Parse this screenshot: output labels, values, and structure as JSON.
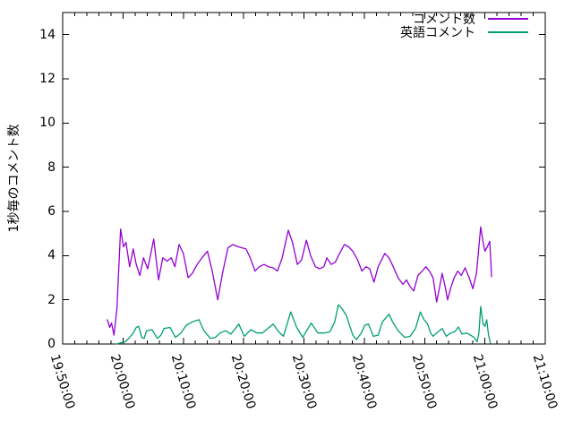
{
  "chart_data": {
    "type": "line",
    "title": "",
    "xlabel": "",
    "ylabel": "1秒毎のコメント数",
    "x_axis": {
      "kind": "time",
      "start_label": "19:50:00",
      "end_label": "21:10:00",
      "range_minutes": [
        0,
        80
      ],
      "major_tick_interval_minutes": 10,
      "minor_tick_interval_minutes": 2,
      "tick_labels": [
        "19:50:00",
        "20:00:00",
        "20:10:00",
        "20:20:00",
        "20:30:00",
        "20:40:00",
        "20:50:00",
        "21:00:00",
        "21:10:00"
      ],
      "tick_label_rotation_deg": 73
    },
    "y_axis": {
      "ylim": [
        0,
        15
      ],
      "major_tick_interval": 2,
      "tick_labels": [
        "0",
        "2",
        "4",
        "6",
        "8",
        "10",
        "12",
        "14"
      ]
    },
    "grid": false,
    "legend_position": "top-right-inside",
    "series": [
      {
        "name": "コメント数",
        "color": "#9400d3",
        "x_unit": "minutes_after_19:50:00",
        "points": [
          [
            7.4,
            1.1
          ],
          [
            7.8,
            0.75
          ],
          [
            8.1,
            0.95
          ],
          [
            8.5,
            0.4
          ],
          [
            9.0,
            1.6
          ],
          [
            9.6,
            5.2
          ],
          [
            10.1,
            4.4
          ],
          [
            10.5,
            4.6
          ],
          [
            11.1,
            3.5
          ],
          [
            11.7,
            4.3
          ],
          [
            12.2,
            3.6
          ],
          [
            12.8,
            3.1
          ],
          [
            13.4,
            3.9
          ],
          [
            14.1,
            3.4
          ],
          [
            15.1,
            4.75
          ],
          [
            15.9,
            2.9
          ],
          [
            16.6,
            3.9
          ],
          [
            17.3,
            3.75
          ],
          [
            18.0,
            3.9
          ],
          [
            18.6,
            3.5
          ],
          [
            19.3,
            4.5
          ],
          [
            20.0,
            4.1
          ],
          [
            20.8,
            3.0
          ],
          [
            21.5,
            3.2
          ],
          [
            22.3,
            3.6
          ],
          [
            23.1,
            3.9
          ],
          [
            24.0,
            4.2
          ],
          [
            24.8,
            3.3
          ],
          [
            25.7,
            2.0
          ],
          [
            26.5,
            3.2
          ],
          [
            27.4,
            4.35
          ],
          [
            28.2,
            4.5
          ],
          [
            29.1,
            4.4
          ],
          [
            30.4,
            4.3
          ],
          [
            31.1,
            3.9
          ],
          [
            31.9,
            3.3
          ],
          [
            32.6,
            3.5
          ],
          [
            33.4,
            3.6
          ],
          [
            34.1,
            3.5
          ],
          [
            34.9,
            3.45
          ],
          [
            35.6,
            3.3
          ],
          [
            36.4,
            3.9
          ],
          [
            37.4,
            5.15
          ],
          [
            38.1,
            4.6
          ],
          [
            38.9,
            3.6
          ],
          [
            39.6,
            3.8
          ],
          [
            40.4,
            4.7
          ],
          [
            41.1,
            4.0
          ],
          [
            41.9,
            3.5
          ],
          [
            42.6,
            3.4
          ],
          [
            43.3,
            3.5
          ],
          [
            43.8,
            3.9
          ],
          [
            44.5,
            3.6
          ],
          [
            45.2,
            3.7
          ],
          [
            45.9,
            4.1
          ],
          [
            46.7,
            4.5
          ],
          [
            47.4,
            4.4
          ],
          [
            48.1,
            4.2
          ],
          [
            48.9,
            3.8
          ],
          [
            49.6,
            3.3
          ],
          [
            50.3,
            3.5
          ],
          [
            50.9,
            3.4
          ],
          [
            51.6,
            2.8
          ],
          [
            52.3,
            3.5
          ],
          [
            53.4,
            4.1
          ],
          [
            54.1,
            3.9
          ],
          [
            54.8,
            3.5
          ],
          [
            55.6,
            3.0
          ],
          [
            56.4,
            2.7
          ],
          [
            57.0,
            2.9
          ],
          [
            57.6,
            2.6
          ],
          [
            58.2,
            2.4
          ],
          [
            58.9,
            3.1
          ],
          [
            59.6,
            3.3
          ],
          [
            60.2,
            3.5
          ],
          [
            60.8,
            3.3
          ],
          [
            61.4,
            3.0
          ],
          [
            62.0,
            1.9
          ],
          [
            62.5,
            2.6
          ],
          [
            62.9,
            3.2
          ],
          [
            63.4,
            2.6
          ],
          [
            63.8,
            2.0
          ],
          [
            64.4,
            2.6
          ],
          [
            64.9,
            3.0
          ],
          [
            65.5,
            3.3
          ],
          [
            66.1,
            3.1
          ],
          [
            66.7,
            3.45
          ],
          [
            67.4,
            3.0
          ],
          [
            68.0,
            2.5
          ],
          [
            68.6,
            3.2
          ],
          [
            69.0,
            4.4
          ],
          [
            69.3,
            5.3
          ],
          [
            69.7,
            4.6
          ],
          [
            70.0,
            4.2
          ],
          [
            70.4,
            4.4
          ],
          [
            70.8,
            4.65
          ],
          [
            71.0,
            3.6
          ],
          [
            71.1,
            3.05
          ]
        ]
      },
      {
        "name": "英語コメント",
        "color": "#009e73",
        "x_unit": "minutes_after_19:50:00",
        "points": [
          [
            8.9,
            0.0
          ],
          [
            9.6,
            0.05
          ],
          [
            10.4,
            0.1
          ],
          [
            11.1,
            0.3
          ],
          [
            11.7,
            0.5
          ],
          [
            12.2,
            0.75
          ],
          [
            12.6,
            0.8
          ],
          [
            13.1,
            0.3
          ],
          [
            13.5,
            0.25
          ],
          [
            13.9,
            0.6
          ],
          [
            14.8,
            0.65
          ],
          [
            15.7,
            0.25
          ],
          [
            16.3,
            0.4
          ],
          [
            16.8,
            0.7
          ],
          [
            17.8,
            0.75
          ],
          [
            18.7,
            0.3
          ],
          [
            19.6,
            0.5
          ],
          [
            20.5,
            0.85
          ],
          [
            21.5,
            1.0
          ],
          [
            22.6,
            1.1
          ],
          [
            23.4,
            0.6
          ],
          [
            24.5,
            0.25
          ],
          [
            25.3,
            0.3
          ],
          [
            26.1,
            0.5
          ],
          [
            27.0,
            0.6
          ],
          [
            27.9,
            0.45
          ],
          [
            29.2,
            0.9
          ],
          [
            30.1,
            0.35
          ],
          [
            31.2,
            0.65
          ],
          [
            32.2,
            0.5
          ],
          [
            33.1,
            0.5
          ],
          [
            34.0,
            0.7
          ],
          [
            34.9,
            0.9
          ],
          [
            35.8,
            0.55
          ],
          [
            36.6,
            0.35
          ],
          [
            37.8,
            1.45
          ],
          [
            38.8,
            0.75
          ],
          [
            39.8,
            0.3
          ],
          [
            41.2,
            0.95
          ],
          [
            42.3,
            0.5
          ],
          [
            43.4,
            0.5
          ],
          [
            44.3,
            0.55
          ],
          [
            45.1,
            1.0
          ],
          [
            45.7,
            1.78
          ],
          [
            46.3,
            1.6
          ],
          [
            47.0,
            1.3
          ],
          [
            47.5,
            0.9
          ],
          [
            48.1,
            0.4
          ],
          [
            48.7,
            0.2
          ],
          [
            49.5,
            0.5
          ],
          [
            50.1,
            0.85
          ],
          [
            50.7,
            0.9
          ],
          [
            51.5,
            0.35
          ],
          [
            52.3,
            0.4
          ],
          [
            53.0,
            1.0
          ],
          [
            54.1,
            1.35
          ],
          [
            54.7,
            1.0
          ],
          [
            55.6,
            0.6
          ],
          [
            56.7,
            0.3
          ],
          [
            57.6,
            0.35
          ],
          [
            58.5,
            0.7
          ],
          [
            59.3,
            1.45
          ],
          [
            59.9,
            1.1
          ],
          [
            60.5,
            0.9
          ],
          [
            61.0,
            0.5
          ],
          [
            61.4,
            0.35
          ],
          [
            62.0,
            0.5
          ],
          [
            62.9,
            0.7
          ],
          [
            63.6,
            0.35
          ],
          [
            64.3,
            0.5
          ],
          [
            65.0,
            0.55
          ],
          [
            65.6,
            0.77
          ],
          [
            66.2,
            0.45
          ],
          [
            67.0,
            0.5
          ],
          [
            68.2,
            0.3
          ],
          [
            68.7,
            0.1
          ],
          [
            69.0,
            0.5
          ],
          [
            69.3,
            1.7
          ],
          [
            69.7,
            0.9
          ],
          [
            70.0,
            0.8
          ],
          [
            70.3,
            1.1
          ],
          [
            70.6,
            0.4
          ],
          [
            70.9,
            0.05
          ]
        ]
      }
    ]
  },
  "legend": {
    "items": [
      {
        "label": "コメント数"
      },
      {
        "label": "英語コメント"
      }
    ]
  },
  "colors": {
    "background": "#ffffff",
    "axis": "#000000",
    "text": "#000000",
    "series1": "#9400d3",
    "series2": "#009e73"
  }
}
